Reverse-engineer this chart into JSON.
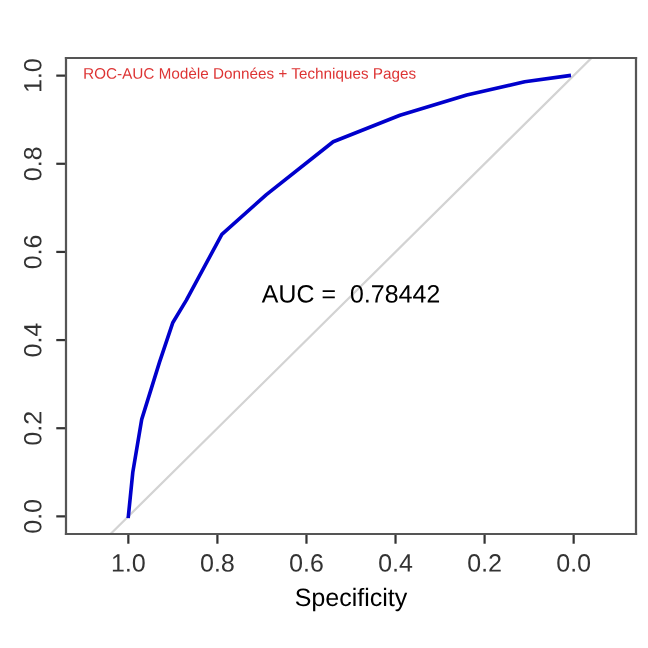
{
  "chart_data": {
    "type": "line",
    "title": "ROC-AUC Modèle Données + Techniques Pages",
    "xlabel": "Specificity",
    "annotations": [
      "AUC =  0.78442"
    ],
    "series": [
      {
        "color": "#0000cc",
        "x": [
          1.0,
          0.99,
          0.97,
          0.93,
          0.9,
          0.87,
          0.79,
          0.69,
          0.54,
          0.39,
          0.24,
          0.11,
          0.01
        ],
        "values": [
          0.0,
          0.1,
          0.22,
          0.35,
          0.44,
          0.49,
          0.64,
          0.73,
          0.85,
          0.91,
          0.956,
          0.986,
          1.0
        ]
      },
      {
        "color": "#d3d3d3",
        "x": [
          1.04,
          -0.04
        ],
        "values": [
          -0.04,
          1.04
        ]
      }
    ],
    "xlim": [
      1.14,
      -0.14
    ],
    "ylim": [
      -0.04,
      1.04
    ],
    "xticks": [
      {
        "value": 1,
        "label": "1.0"
      },
      0.8,
      0.6,
      0.4,
      0.2,
      {
        "value": 0,
        "label": "0.0"
      }
    ],
    "yticks": [
      {
        "value": 0,
        "label": "0.0"
      },
      0.2,
      0.4,
      0.6,
      0.8,
      {
        "value": 1,
        "label": "1.0"
      }
    ],
    "grid": false,
    "legend": false,
    "marker": "none",
    "line_style": "solid"
  }
}
